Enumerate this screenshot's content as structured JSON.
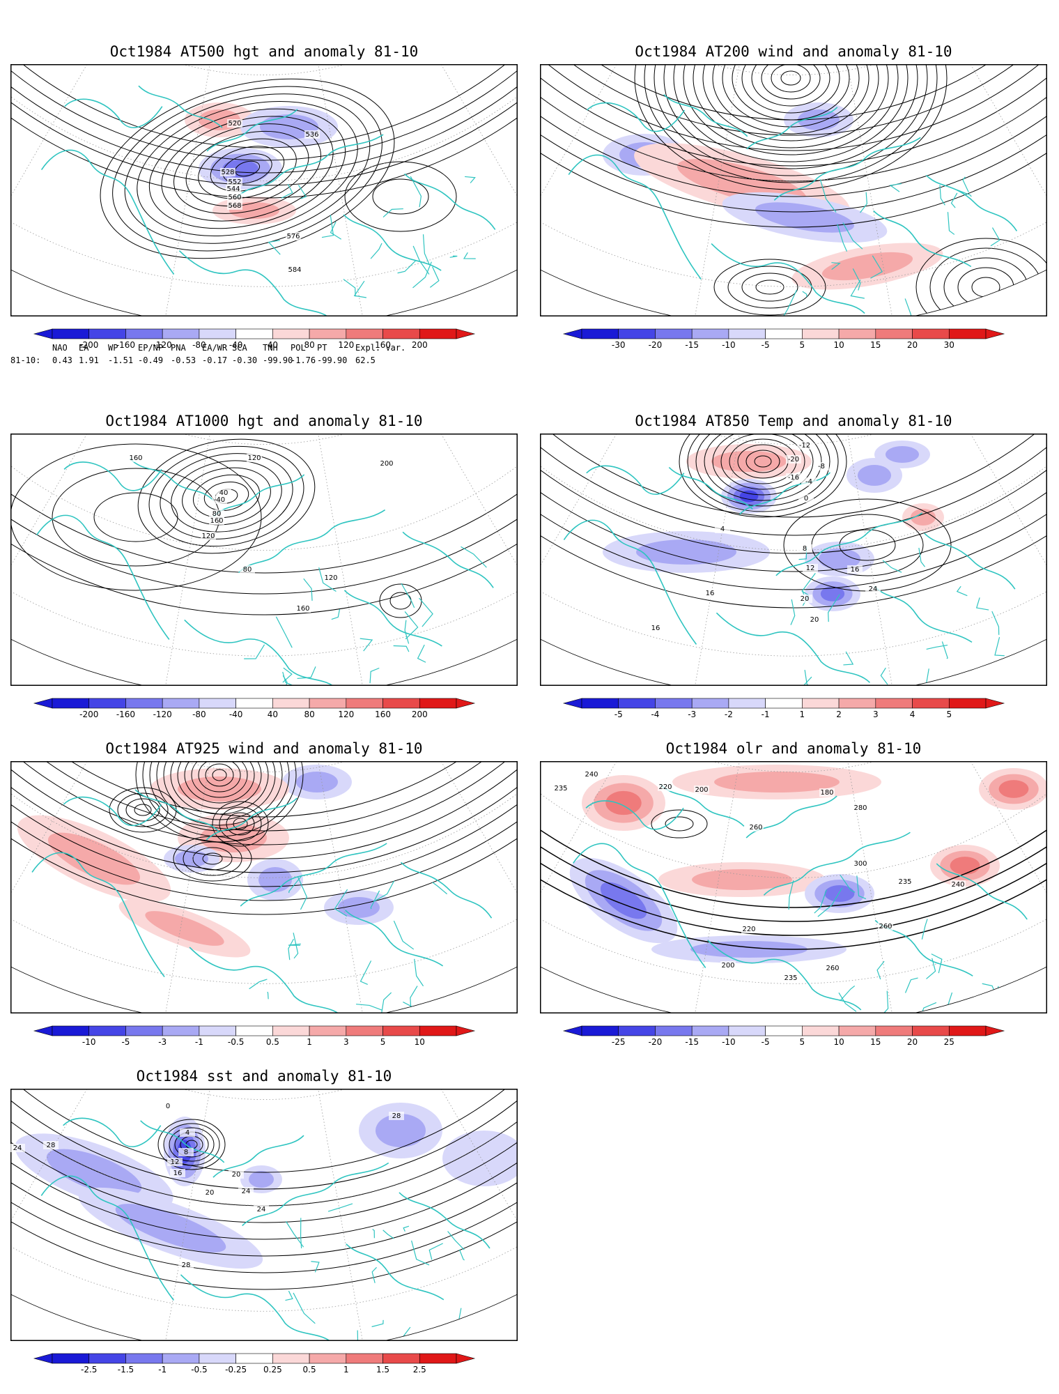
{
  "panels": [
    {
      "id": "at500",
      "title": "Oct1984 AT500 hgt and anomaly 81-10",
      "colorbar_labels": [
        "-200",
        "-160",
        "-120",
        "-80",
        "-40",
        "40",
        "80",
        "120",
        "160",
        "200"
      ],
      "contour_labels": [
        "520",
        "528",
        "536",
        "544",
        "552",
        "560",
        "568",
        "576",
        "584"
      ],
      "index_headers": [
        "NAO",
        "EA",
        "WP",
        "EP/NP",
        "PNA",
        "EA/WR",
        "SCA",
        "TNH",
        "POL",
        "PT",
        "Expl. Var."
      ],
      "index_row_label": "81-10:",
      "index_values": [
        "0.43",
        "1.91",
        "-1.51",
        "-0.49",
        "-0.53",
        "-0.17",
        "-0.30",
        "-99.90",
        "-1.76",
        "-99.90",
        "62.5"
      ]
    },
    {
      "id": "at200",
      "title": "Oct1984 AT200 wind and anomaly 81-10",
      "colorbar_labels": [
        "-30",
        "-20",
        "-15",
        "-10",
        "-5",
        "5",
        "10",
        "15",
        "20",
        "30"
      ],
      "contour_labels": []
    },
    {
      "id": "at1000",
      "title": "Oct1984 AT1000 hgt and anomaly 81-10",
      "colorbar_labels": [
        "-200",
        "-160",
        "-120",
        "-80",
        "-40",
        "40",
        "80",
        "120",
        "160",
        "200"
      ],
      "contour_labels": [
        "160",
        "120",
        "200",
        "-40",
        "40",
        "80",
        "160",
        "120",
        "80",
        "160",
        "120"
      ]
    },
    {
      "id": "at850",
      "title": "Oct1984 AT850 Temp and anomaly 81-10",
      "colorbar_labels": [
        "-5",
        "-4",
        "-3",
        "-2",
        "-1",
        "1",
        "2",
        "3",
        "4",
        "5"
      ],
      "contour_labels": [
        "-12",
        "-8",
        "-4",
        "0",
        "-20",
        "-16",
        "4",
        "8",
        "12",
        "16",
        "20",
        "24",
        "16",
        "20",
        "16"
      ]
    },
    {
      "id": "at925",
      "title": "Oct1984 AT925 wind and anomaly 81-10",
      "colorbar_labels": [
        "-10",
        "-5",
        "-3",
        "-1",
        "-0.5",
        "0.5",
        "1",
        "3",
        "5",
        "10"
      ],
      "contour_labels": []
    },
    {
      "id": "olr",
      "title": "Oct1984 olr and anomaly 81-10",
      "colorbar_labels": [
        "-25",
        "-20",
        "-15",
        "-10",
        "-5",
        "5",
        "10",
        "15",
        "20",
        "25"
      ],
      "contour_labels": [
        "240",
        "235",
        "220",
        "200",
        "260",
        "180",
        "280",
        "300",
        "235",
        "240",
        "260",
        "220",
        "200",
        "235",
        "260"
      ]
    },
    {
      "id": "sst",
      "title": "Oct1984 sst and anomaly 81-10",
      "colorbar_labels": [
        "-2.5",
        "-1.5",
        "-1",
        "-0.5",
        "-0.25",
        "0.25",
        "0.5",
        "1",
        "1.5",
        "2.5"
      ],
      "contour_labels": [
        "28",
        "24",
        "28",
        "0",
        "4",
        "8",
        "12",
        "16",
        "20",
        "24",
        "28",
        "20",
        "24"
      ]
    }
  ],
  "colors": {
    "coast": "#2ec4c0",
    "neg": [
      "#1a1ad6",
      "#4545e6",
      "#7878ee",
      "#a9a9f4",
      "#d8d8fa"
    ],
    "pos": [
      "#fbd8d8",
      "#f5a9a9",
      "#ef7b7b",
      "#e84a4a",
      "#e01818"
    ]
  }
}
